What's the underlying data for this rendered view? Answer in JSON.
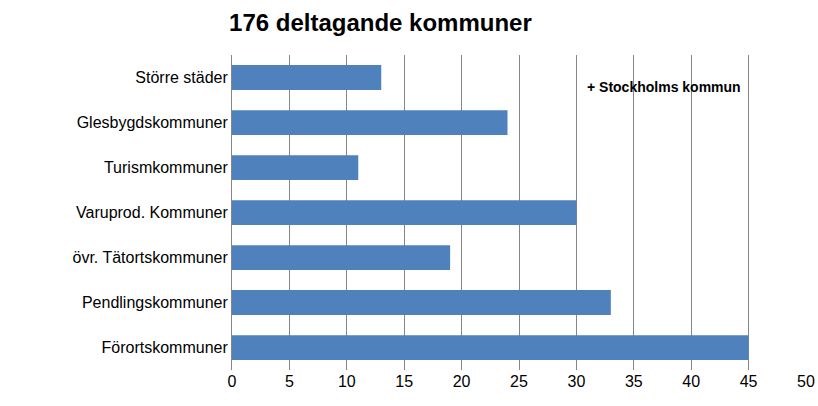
{
  "chart_data": {
    "type": "bar",
    "orientation": "horizontal",
    "title": "176 deltagande kommuner",
    "categories": [
      "Större städer",
      "Glesbygdskommuner",
      "Turismkommuner",
      "Varuprod. Kommuner",
      "övr. Tätortskommuner",
      "Pendlingskommuner",
      "Förortskommuner"
    ],
    "values": [
      13,
      24,
      11,
      30,
      19,
      33,
      45
    ],
    "color": "#4f81bd",
    "xlim": [
      0,
      50
    ],
    "xticks": [
      0,
      5,
      10,
      15,
      20,
      25,
      30,
      35,
      40,
      45,
      50
    ],
    "grid": true,
    "annotations": [
      "+ Stockholms kommun"
    ]
  }
}
